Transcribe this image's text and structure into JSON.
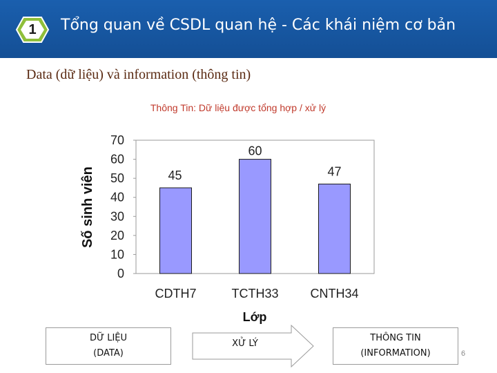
{
  "header": {
    "badge_number": "1",
    "title": "Tổng quan về CSDL quan hệ - Các khái niệm cơ bản",
    "bg_color": "#1a5fae"
  },
  "subtitle": "Data (dữ liệu) và information (thông tin)",
  "chart_data": {
    "type": "bar",
    "title": "Thông Tin: Dữ liệu được tổng hợp / xử lý",
    "xlabel": "Lớp",
    "ylabel": "Số sinh viên",
    "categories": [
      "CDTH7",
      "TCTH33",
      "CNTH34"
    ],
    "values": [
      45,
      60,
      47
    ],
    "data_labels": [
      "45",
      "60",
      "47"
    ],
    "ylim": [
      0,
      70
    ],
    "yticks": [
      0,
      10,
      20,
      30,
      40,
      50,
      60,
      70
    ],
    "grid": false,
    "bar_color": "#9999ff",
    "title_color": "#c0392b"
  },
  "flow": {
    "data_box": {
      "line1": "DỮ LIỆU",
      "line2": "(DATA)"
    },
    "process_label": "XỬ LÝ",
    "info_box": {
      "line1": "THÔNG TIN",
      "line2": "(INFORMATION)"
    }
  },
  "page_number": "6"
}
